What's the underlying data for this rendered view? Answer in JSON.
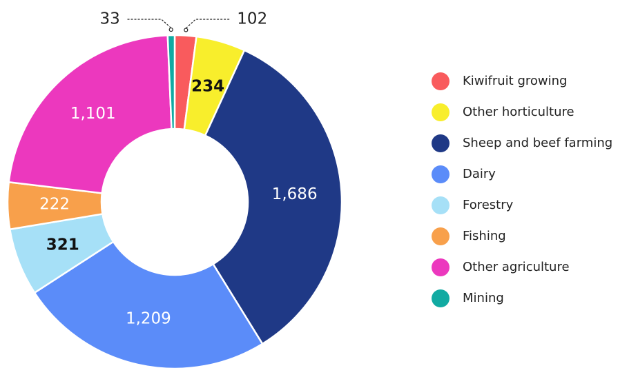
{
  "chart_data": {
    "type": "donut",
    "categories": [
      "Kiwifruit growing",
      "Other horticulture",
      "Sheep and beef farming",
      "Dairy",
      "Forestry",
      "Fishing",
      "Other agriculture",
      "Mining"
    ],
    "values": [
      102,
      234,
      1686,
      1209,
      321,
      222,
      1101,
      33
    ],
    "value_labels": [
      "102",
      "234",
      "1,686",
      "1,209",
      "321",
      "222",
      "1,101",
      "33"
    ],
    "colors": [
      "#f95b5d",
      "#f8ee2c",
      "#1f3986",
      "#5b8cf9",
      "#a6e0f7",
      "#f8a04b",
      "#ec38be",
      "#11aaa2"
    ],
    "legend": "right"
  }
}
